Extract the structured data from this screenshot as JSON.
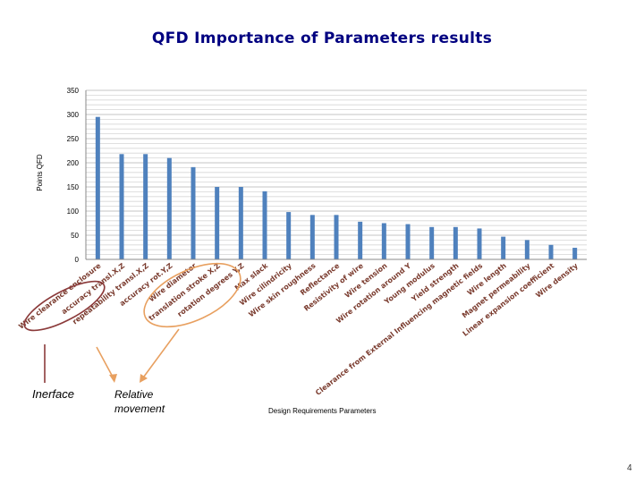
{
  "chart_data": {
    "type": "bar",
    "title": "QFD Importance of Parameters results",
    "xlabel": "Design Requirements Parameters",
    "ylabel": "Points QFD",
    "ylim": [
      0,
      350
    ],
    "yticks": [
      0,
      50,
      100,
      150,
      200,
      250,
      300,
      350
    ],
    "grid": true,
    "bar_color": "#4f81bd",
    "categories": [
      "Wire clearance enclosure",
      "accuracy transl.X,Z",
      "repeatability transl.X,Z",
      "accuracy rot.Y,Z",
      "Wire diameter",
      "translation stroke X,Z",
      "rotation degrees Y,Z",
      "Max slack",
      "Wire cilindricity",
      "Wire skin roughness",
      "Reflectance",
      "Resistivity of wire",
      "Wire tension",
      "Wire rotation around Y",
      "Young modulus",
      "Yield strength",
      "Clearance from External Influencing magnetic fields",
      "Wire length",
      "Magnet permeability",
      "Linear expansion coefficient",
      "Wire density"
    ],
    "values": [
      295,
      218,
      218,
      210,
      191,
      150,
      150,
      141,
      98,
      92,
      92,
      78,
      75,
      73,
      67,
      67,
      64,
      47,
      40,
      30,
      24
    ]
  },
  "annotations": {
    "interface": "Inerface",
    "relative_movement": "Relative movement",
    "interface_circle_color": "#8b3a3a",
    "relative_circle_color": "#e8a060"
  },
  "page_number": "4"
}
